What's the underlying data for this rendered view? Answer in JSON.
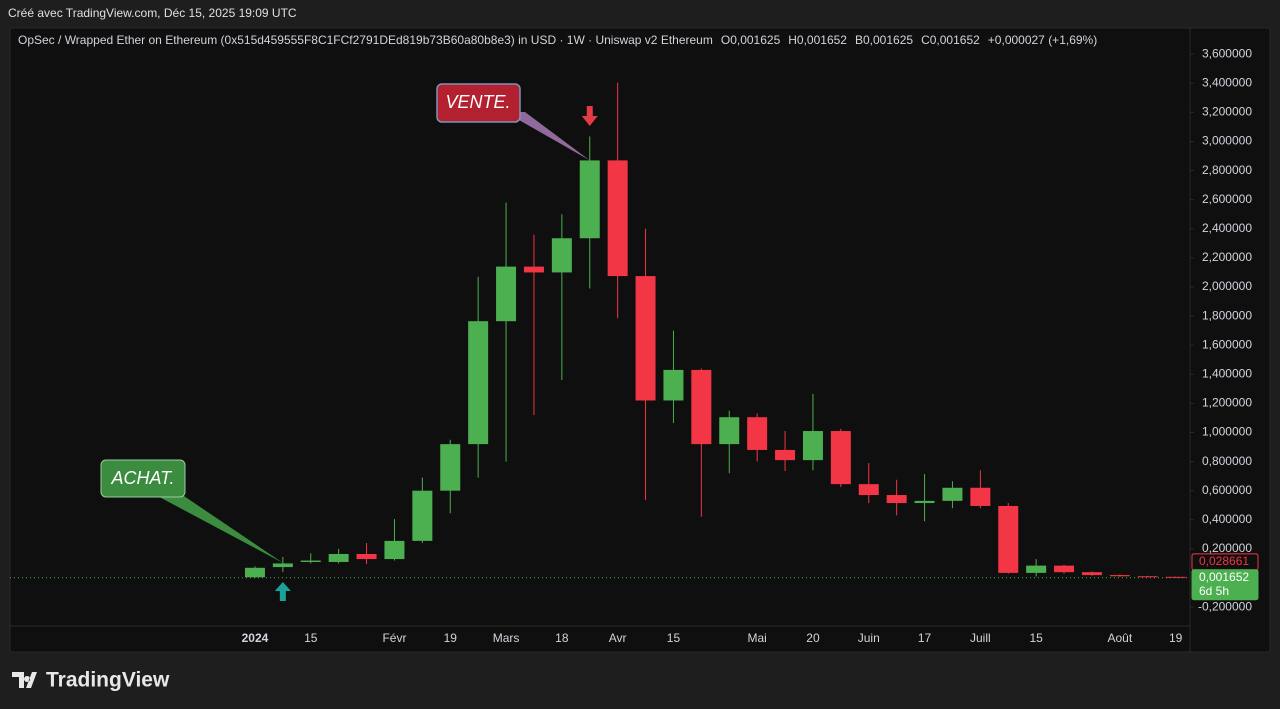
{
  "header": {
    "credit": "Créé avec TradingView.com, Déc 15, 2025 19:09 UTC"
  },
  "footer": {
    "brand": "TradingView"
  },
  "chart_data": {
    "type": "candlestick",
    "title": "OpSec / Wrapped Ether on Ethereum (0x515d459555F8C1FCf2791DEd819b73B60a80b8e3) in USD · 1W · Uniswap v2 Ethereum",
    "ohlc_legend": [
      {
        "key": "O",
        "value": "0,001625"
      },
      {
        "key": "H",
        "value": "0,001652"
      },
      {
        "key": "B",
        "value": "0,001625"
      },
      {
        "key": "C",
        "value": "0,001652"
      }
    ],
    "change": "+0,000027 (+1,69%)",
    "categories": [
      "2024",
      null,
      "15",
      null,
      null,
      "Févr",
      null,
      "19",
      null,
      "Mars",
      null,
      "18",
      null,
      "Avr",
      null,
      "15",
      null,
      null,
      "Mai",
      null,
      "20",
      null,
      "Juin",
      null,
      "17",
      null,
      "Juill",
      null,
      "15",
      null,
      null,
      "Août",
      null,
      "19"
    ],
    "open": [
      0.005,
      0.075,
      0.11,
      0.11,
      0.165,
      0.13,
      0.255,
      0.6,
      0.92,
      1.765,
      2.14,
      2.1,
      2.335,
      2.87,
      2.075,
      1.22,
      1.43,
      0.92,
      1.105,
      0.88,
      0.81,
      1.01,
      0.645,
      0.57,
      0.515,
      0.53,
      0.62,
      0.495,
      0.035,
      0.085,
      0.04,
      0.02,
      0.012,
      0.008
    ],
    "high": [
      0.08,
      0.145,
      0.17,
      0.2,
      0.24,
      0.405,
      0.69,
      0.95,
      2.07,
      2.58,
      2.36,
      2.5,
      3.035,
      3.405,
      2.4,
      1.7,
      1.44,
      1.15,
      1.13,
      1.01,
      1.265,
      1.025,
      0.79,
      0.675,
      0.715,
      0.665,
      0.74,
      0.515,
      0.13,
      0.09,
      0.045,
      0.025,
      0.015,
      0.01
    ],
    "low": [
      0.0,
      0.04,
      0.1,
      0.1,
      0.095,
      0.12,
      0.24,
      0.445,
      0.69,
      0.8,
      1.12,
      1.36,
      1.99,
      1.785,
      0.535,
      1.065,
      0.42,
      0.72,
      0.8,
      0.735,
      0.74,
      0.625,
      0.515,
      0.43,
      0.39,
      0.48,
      0.48,
      0.03,
      0.01,
      0.03,
      0.015,
      0.008,
      0.005,
      0.003
    ],
    "close": [
      0.07,
      0.1,
      0.12,
      0.165,
      0.13,
      0.255,
      0.6,
      0.92,
      1.765,
      2.14,
      2.1,
      2.335,
      2.87,
      2.075,
      1.22,
      1.43,
      0.92,
      1.105,
      0.88,
      0.81,
      1.01,
      0.645,
      0.57,
      0.515,
      0.53,
      0.62,
      0.495,
      0.035,
      0.085,
      0.04,
      0.02,
      0.012,
      0.008,
      0.005
    ],
    "up_color": "#4caf50",
    "down_color": "#f23645",
    "ylim": [
      -0.33,
      3.78
    ],
    "yticks": [
      {
        "value": -0.2,
        "label": "-0,200000"
      },
      {
        "value": 0.2,
        "label": "0,200000"
      },
      {
        "value": 0.4,
        "label": "0,400000"
      },
      {
        "value": 0.6,
        "label": "0,600000"
      },
      {
        "value": 0.8,
        "label": "0,800000"
      },
      {
        "value": 1.0,
        "label": "1,000000"
      },
      {
        "value": 1.2,
        "label": "1,200000"
      },
      {
        "value": 1.4,
        "label": "1,400000"
      },
      {
        "value": 1.6,
        "label": "1,600000"
      },
      {
        "value": 1.8,
        "label": "1,800000"
      },
      {
        "value": 2.0,
        "label": "2,000000"
      },
      {
        "value": 2.2,
        "label": "2,200000"
      },
      {
        "value": 2.4,
        "label": "2,400000"
      },
      {
        "value": 2.6,
        "label": "2,600000"
      },
      {
        "value": 2.8,
        "label": "2,800000"
      },
      {
        "value": 3.0,
        "label": "3,000000"
      },
      {
        "value": 3.2,
        "label": "3,200000"
      },
      {
        "value": 3.4,
        "label": "3,400000"
      },
      {
        "value": 3.6,
        "label": "3,600000"
      }
    ],
    "grid": false,
    "price_labels": [
      {
        "value": 0.028661,
        "label": "0,028661",
        "color": "#f23645"
      },
      {
        "value": 0.001652,
        "label": "0,001652",
        "color": "#4caf50",
        "countdown": "6d 5h"
      }
    ],
    "annotations": [
      {
        "text": "ACHAT.",
        "color": "#3b8c3f",
        "index": 1
      },
      {
        "text": "VENTE.",
        "color": "#b3202f",
        "index": 12
      }
    ]
  }
}
